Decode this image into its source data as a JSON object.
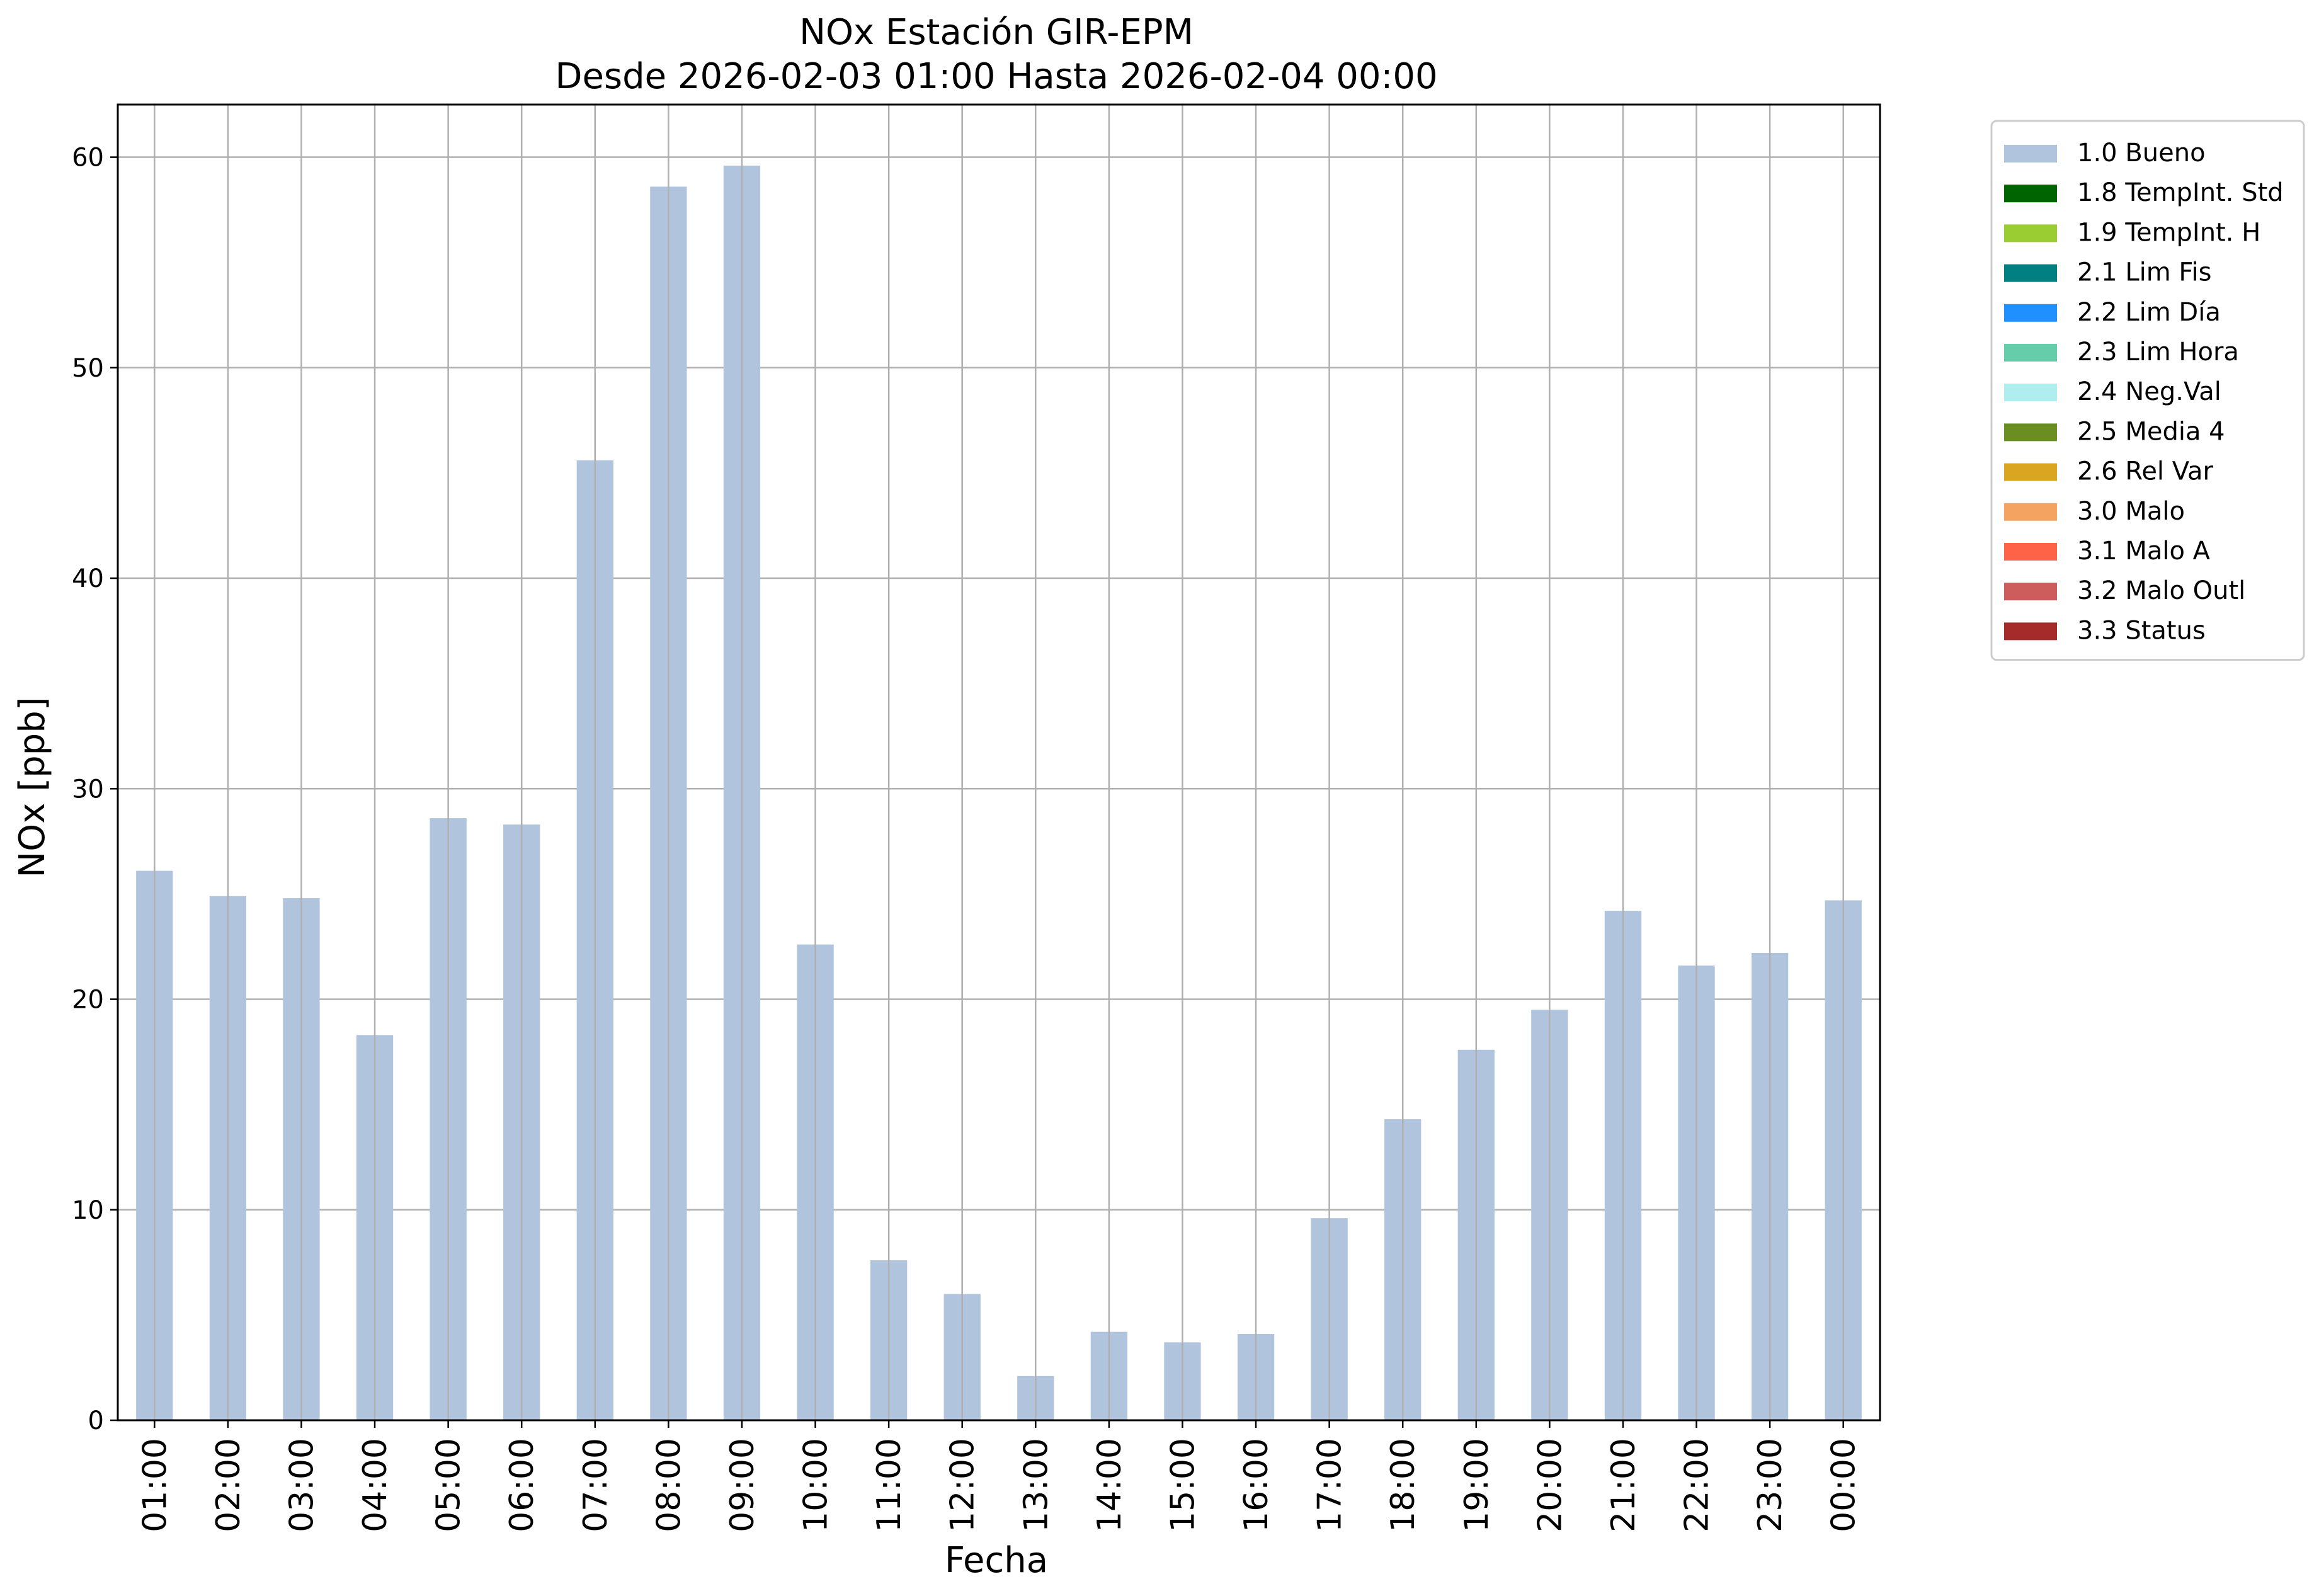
{
  "chart_data": {
    "type": "bar",
    "title": "NOx Estación GIR-EPM",
    "subtitle": "Desde 2026-02-03 01:00 Hasta 2026-02-04 00:00",
    "xlabel": "Fecha",
    "ylabel": "NOx [ppb]",
    "ylim": [
      0,
      62.5
    ],
    "yticks": [
      0,
      10,
      20,
      30,
      40,
      50,
      60
    ],
    "grid": true,
    "legend_position": "outside-right",
    "categories": [
      "01:00",
      "02:00",
      "03:00",
      "04:00",
      "05:00",
      "06:00",
      "07:00",
      "08:00",
      "09:00",
      "10:00",
      "11:00",
      "12:00",
      "13:00",
      "14:00",
      "15:00",
      "16:00",
      "17:00",
      "18:00",
      "19:00",
      "20:00",
      "21:00",
      "22:00",
      "23:00",
      "00:00"
    ],
    "series": [
      {
        "name": "1.0 Bueno",
        "color": "#b0c4de",
        "values": [
          26.1,
          24.9,
          24.8,
          18.3,
          28.6,
          28.3,
          45.6,
          58.6,
          59.6,
          22.6,
          7.6,
          6.0,
          2.1,
          4.2,
          3.7,
          4.1,
          9.6,
          14.3,
          17.6,
          19.5,
          24.2,
          21.6,
          22.2,
          24.7
        ]
      }
    ],
    "legend": [
      {
        "label": "1.0 Bueno",
        "color": "#b0c4de"
      },
      {
        "label": "1.8 TempInt. Std",
        "color": "#006400"
      },
      {
        "label": "1.9 TempInt. H",
        "color": "#9acd32"
      },
      {
        "label": "2.1 Lim Fis",
        "color": "#008080"
      },
      {
        "label": "2.2 Lim Día",
        "color": "#1e90ff"
      },
      {
        "label": "2.3 Lim Hora",
        "color": "#66cdaa"
      },
      {
        "label": "2.4 Neg.Val",
        "color": "#afeeee"
      },
      {
        "label": "2.5 Media 4",
        "color": "#6b8e23"
      },
      {
        "label": "2.6 Rel Var",
        "color": "#daa520"
      },
      {
        "label": "3.0 Malo",
        "color": "#f4a460"
      },
      {
        "label": "3.1 Malo A",
        "color": "#ff6347"
      },
      {
        "label": "3.2 Malo Outl",
        "color": "#cd5c5c"
      },
      {
        "label": "3.3 Status",
        "color": "#a52a2a"
      }
    ]
  }
}
